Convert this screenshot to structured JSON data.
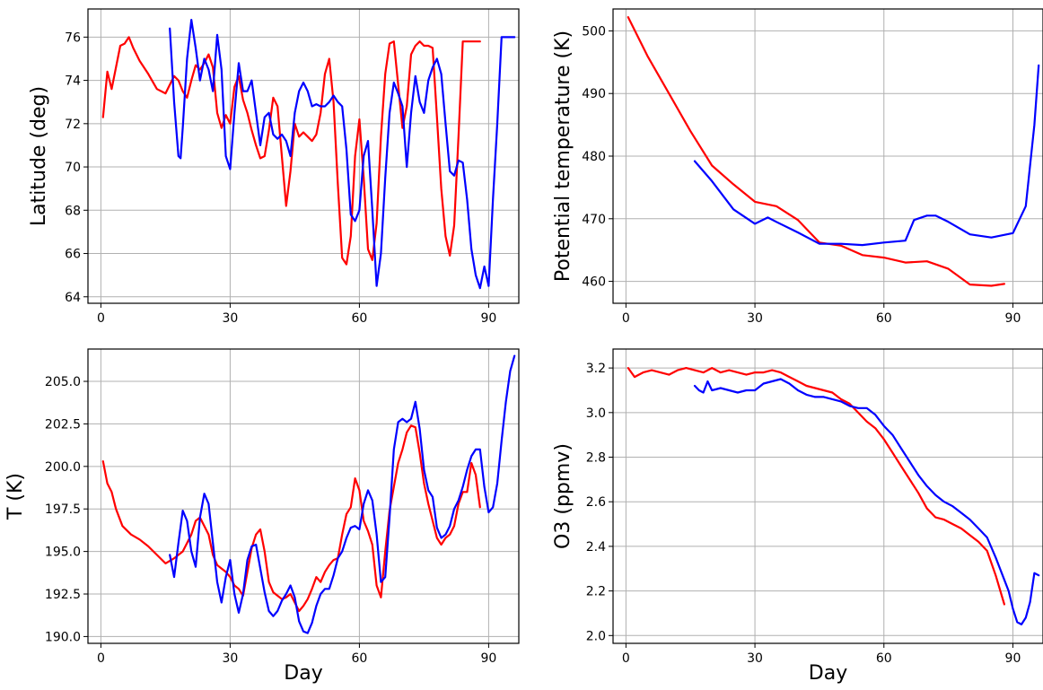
{
  "chart_data": [
    {
      "type": "line",
      "xlabel": "",
      "ylabel": "Latitude (deg)",
      "xlim": [
        -3,
        97
      ],
      "ylim": [
        63.7,
        77.3
      ],
      "xticks": [
        0,
        30,
        60,
        90
      ],
      "yticks": [
        64,
        66,
        68,
        70,
        72,
        74,
        76
      ],
      "ytick_labels": [
        "64",
        "66",
        "68",
        "70",
        "72",
        "74",
        "76"
      ],
      "grid": true,
      "series": [
        {
          "color": "#ff0000",
          "x": [
            0.5,
            1.5,
            2.5,
            3.5,
            4.5,
            5.5,
            6.5,
            7.5,
            9,
            11,
            13,
            15,
            16,
            17,
            18,
            19,
            20,
            21,
            22,
            23,
            24,
            25,
            26,
            27,
            28,
            29,
            30,
            31,
            32,
            33,
            34,
            35,
            36,
            37,
            38,
            39,
            40,
            41,
            42,
            43,
            44,
            45,
            46,
            47,
            48,
            49,
            50,
            51,
            52,
            53,
            54,
            55,
            56,
            57,
            58,
            59,
            60,
            61,
            62,
            63,
            64,
            65,
            66,
            67,
            68,
            69,
            70,
            71,
            72,
            73,
            74,
            75,
            76,
            77,
            78,
            79,
            80,
            81,
            82,
            83,
            84,
            85,
            86,
            87,
            88
          ],
          "y": [
            72.3,
            74.4,
            73.6,
            74.6,
            75.6,
            75.7,
            76.0,
            75.5,
            74.9,
            74.3,
            73.6,
            73.4,
            73.8,
            74.2,
            74.0,
            73.5,
            73.2,
            74.0,
            74.7,
            74.5,
            74.8,
            75.2,
            74.6,
            72.5,
            71.8,
            72.4,
            72.0,
            73.7,
            74.2,
            73.1,
            72.5,
            71.7,
            71.0,
            70.4,
            70.5,
            71.7,
            73.2,
            72.8,
            70.5,
            68.2,
            69.8,
            72.0,
            71.4,
            71.6,
            71.4,
            71.2,
            71.5,
            72.5,
            74.3,
            75.0,
            73.0,
            69.2,
            65.8,
            65.5,
            66.8,
            70.5,
            72.2,
            69.5,
            66.2,
            65.7,
            67.4,
            71.4,
            74.3,
            75.7,
            75.8,
            73.8,
            71.8,
            72.8,
            75.2,
            75.6,
            75.8,
            75.6,
            75.6,
            75.5,
            72.3,
            69.0,
            66.8,
            65.9,
            67.3,
            71.4,
            75.8,
            75.8,
            75.8,
            75.8,
            75.8
          ]
        },
        {
          "color": "#0000ff",
          "x": [
            16,
            17,
            18,
            18.5,
            19,
            20,
            21,
            22,
            23,
            24,
            25,
            26,
            27,
            28,
            29,
            30,
            31,
            32,
            33,
            34,
            35,
            36,
            37,
            38,
            39,
            40,
            41,
            42,
            43,
            44,
            45,
            46,
            47,
            48,
            49,
            50,
            51,
            52,
            53,
            54,
            55,
            56,
            57,
            58,
            59,
            60,
            61,
            62,
            63,
            64,
            65,
            66,
            67,
            68,
            69,
            70,
            71,
            72,
            73,
            74,
            75,
            76,
            77,
            78,
            79,
            80,
            81,
            82,
            83,
            84,
            85,
            86,
            87,
            88,
            89,
            90,
            91,
            92,
            93,
            94,
            95,
            96
          ],
          "y": [
            76.4,
            73.0,
            70.5,
            70.4,
            71.8,
            75.0,
            76.8,
            75.5,
            74.0,
            75.0,
            74.5,
            73.5,
            76.1,
            74.5,
            70.5,
            69.9,
            72.5,
            74.8,
            73.5,
            73.5,
            74.0,
            72.5,
            71.0,
            72.3,
            72.5,
            71.5,
            71.3,
            71.5,
            71.2,
            70.5,
            72.5,
            73.5,
            73.9,
            73.5,
            72.8,
            72.9,
            72.8,
            72.8,
            73.0,
            73.3,
            73.0,
            72.8,
            70.8,
            67.8,
            67.5,
            68.0,
            70.5,
            71.2,
            68.0,
            64.5,
            66.0,
            69.5,
            72.5,
            73.9,
            73.4,
            72.8,
            70.0,
            72.5,
            74.2,
            73.0,
            72.5,
            74.0,
            74.6,
            75.0,
            74.3,
            72.0,
            69.8,
            69.6,
            70.3,
            70.2,
            68.5,
            66.2,
            65.0,
            64.4,
            65.4,
            64.5,
            68.5,
            72.0,
            76.0,
            76.0,
            76.0,
            76.0
          ]
        }
      ]
    },
    {
      "type": "line",
      "xlabel": "",
      "ylabel": "Potential temperature (K)",
      "xlim": [
        -3,
        97
      ],
      "ylim": [
        456.5,
        503.5
      ],
      "xticks": [
        0,
        30,
        60,
        90
      ],
      "yticks": [
        460,
        470,
        480,
        490,
        500
      ],
      "ytick_labels": [
        "460",
        "470",
        "480",
        "490",
        "500"
      ],
      "grid": true,
      "series": [
        {
          "color": "#ff0000",
          "x": [
            0.5,
            5,
            10,
            15,
            20,
            25,
            30,
            35,
            40,
            45,
            50,
            55,
            60,
            65,
            70,
            75,
            80,
            85,
            88
          ],
          "y": [
            502.2,
            496.0,
            490.0,
            484.0,
            478.5,
            475.5,
            472.7,
            472.0,
            469.8,
            466.2,
            465.7,
            464.2,
            463.8,
            463.0,
            463.2,
            462.0,
            459.5,
            459.3,
            459.6
          ]
        },
        {
          "color": "#0000ff",
          "x": [
            16,
            20,
            25,
            30,
            33,
            35,
            40,
            45,
            50,
            55,
            60,
            65,
            67,
            70,
            72,
            75,
            80,
            85,
            90,
            93,
            95,
            96
          ],
          "y": [
            479.2,
            476.0,
            471.5,
            469.2,
            470.2,
            469.5,
            467.8,
            466.0,
            466.0,
            465.8,
            466.2,
            466.5,
            469.8,
            470.5,
            470.5,
            469.5,
            467.5,
            467.0,
            467.7,
            472.0,
            485.0,
            494.5
          ]
        }
      ]
    },
    {
      "type": "line",
      "xlabel": "Day",
      "ylabel": "T (K)",
      "xlim": [
        -3,
        97
      ],
      "ylim": [
        189.6,
        206.9
      ],
      "xticks": [
        0,
        30,
        60,
        90
      ],
      "yticks": [
        190.0,
        192.5,
        195.0,
        197.5,
        200.0,
        202.5,
        205.0
      ],
      "ytick_labels": [
        "190.0",
        "192.5",
        "195.0",
        "197.5",
        "200.0",
        "202.5",
        "205.0"
      ],
      "grid": true,
      "series": [
        {
          "color": "#ff0000",
          "x": [
            0.5,
            1.5,
            2.5,
            3.5,
            5,
            7,
            9,
            11,
            13,
            15,
            17,
            19,
            21,
            22,
            23,
            24,
            25,
            26,
            27,
            28,
            29,
            30,
            31,
            32,
            33,
            34,
            35,
            36,
            37,
            38,
            39,
            40,
            41,
            42,
            43,
            44,
            45,
            46,
            47,
            48,
            49,
            50,
            51,
            52,
            53,
            54,
            55,
            56,
            57,
            58,
            59,
            60,
            61,
            62,
            63,
            64,
            65,
            66,
            67,
            68,
            69,
            70,
            71,
            72,
            73,
            74,
            75,
            76,
            77,
            78,
            79,
            80,
            81,
            82,
            83,
            84,
            85,
            86,
            87,
            88
          ],
          "y": [
            200.3,
            199.0,
            198.5,
            197.5,
            196.5,
            196.0,
            195.7,
            195.3,
            194.8,
            194.3,
            194.6,
            195.0,
            196.0,
            196.8,
            197.0,
            196.5,
            196.0,
            194.8,
            194.2,
            194.0,
            193.8,
            193.5,
            193.0,
            192.8,
            192.4,
            193.8,
            195.2,
            196.0,
            196.3,
            195.0,
            193.2,
            192.6,
            192.4,
            192.2,
            192.3,
            192.5,
            192.0,
            191.5,
            191.8,
            192.2,
            192.8,
            193.5,
            193.2,
            193.8,
            194.2,
            194.5,
            194.6,
            196.0,
            197.2,
            197.6,
            199.3,
            198.6,
            196.8,
            196.2,
            195.4,
            193.0,
            192.3,
            195.0,
            197.4,
            198.8,
            200.2,
            201.0,
            202.0,
            202.4,
            202.3,
            200.8,
            199.0,
            197.8,
            196.8,
            195.8,
            195.4,
            195.8,
            196.0,
            196.5,
            197.8,
            198.5,
            198.5,
            200.2,
            199.5,
            197.6
          ]
        },
        {
          "color": "#0000ff",
          "x": [
            16,
            17,
            18,
            19,
            20,
            21,
            22,
            23,
            24,
            25,
            26,
            27,
            28,
            29,
            30,
            31,
            32,
            33,
            34,
            35,
            36,
            37,
            38,
            39,
            40,
            41,
            42,
            43,
            44,
            45,
            46,
            47,
            48,
            49,
            50,
            51,
            52,
            53,
            54,
            55,
            56,
            57,
            58,
            59,
            60,
            61,
            62,
            63,
            64,
            65,
            66,
            67,
            68,
            69,
            70,
            71,
            72,
            73,
            74,
            75,
            76,
            77,
            78,
            79,
            80,
            81,
            82,
            83,
            84,
            85,
            86,
            87,
            88,
            89,
            90,
            91,
            92,
            93,
            94,
            95,
            96
          ],
          "y": [
            194.8,
            193.5,
            195.5,
            197.4,
            196.8,
            195.0,
            194.1,
            197.0,
            198.4,
            197.8,
            195.5,
            193.2,
            192.0,
            193.5,
            194.5,
            192.5,
            191.4,
            192.5,
            194.5,
            195.3,
            195.4,
            194.0,
            192.6,
            191.5,
            191.2,
            191.5,
            192.1,
            192.5,
            193.0,
            192.3,
            190.9,
            190.3,
            190.2,
            190.8,
            191.8,
            192.5,
            192.8,
            192.8,
            193.6,
            194.6,
            195.0,
            195.8,
            196.4,
            196.5,
            196.3,
            197.8,
            198.6,
            198.0,
            196.0,
            193.2,
            193.5,
            197.0,
            201.0,
            202.6,
            202.8,
            202.6,
            202.8,
            203.8,
            202.2,
            199.8,
            198.6,
            198.2,
            196.4,
            195.8,
            196.0,
            196.5,
            197.5,
            198.0,
            198.8,
            199.8,
            200.6,
            201.0,
            201.0,
            198.8,
            197.3,
            197.6,
            199.0,
            201.5,
            203.8,
            205.6,
            206.5
          ]
        }
      ]
    },
    {
      "type": "line",
      "xlabel": "Day",
      "ylabel": "O3 (ppmv)",
      "xlim": [
        -3,
        97
      ],
      "ylim": [
        1.965,
        3.285
      ],
      "xticks": [
        0,
        30,
        60,
        90
      ],
      "yticks": [
        2.0,
        2.2,
        2.4,
        2.6,
        2.8,
        3.0,
        3.2
      ],
      "ytick_labels": [
        "2.0",
        "2.2",
        "2.4",
        "2.6",
        "2.8",
        "3.0",
        "3.2"
      ],
      "grid": true,
      "series": [
        {
          "color": "#ff0000",
          "x": [
            0.5,
            2,
            4,
            6,
            8,
            10,
            12,
            14,
            16,
            18,
            20,
            22,
            24,
            26,
            28,
            30,
            32,
            34,
            36,
            38,
            40,
            42,
            44,
            46,
            48,
            50,
            52,
            54,
            56,
            58,
            60,
            62,
            64,
            66,
            68,
            70,
            72,
            74,
            76,
            78,
            80,
            82,
            84,
            86,
            88
          ],
          "y": [
            3.2,
            3.16,
            3.18,
            3.19,
            3.18,
            3.17,
            3.19,
            3.2,
            3.19,
            3.18,
            3.2,
            3.18,
            3.19,
            3.18,
            3.17,
            3.18,
            3.18,
            3.19,
            3.18,
            3.16,
            3.14,
            3.12,
            3.11,
            3.1,
            3.09,
            3.06,
            3.04,
            3.0,
            2.96,
            2.93,
            2.88,
            2.82,
            2.76,
            2.7,
            2.64,
            2.57,
            2.53,
            2.52,
            2.5,
            2.48,
            2.45,
            2.42,
            2.38,
            2.27,
            2.14
          ]
        },
        {
          "color": "#0000ff",
          "x": [
            16,
            17,
            18,
            19,
            20,
            22,
            24,
            26,
            28,
            30,
            32,
            34,
            36,
            38,
            40,
            42,
            44,
            46,
            48,
            50,
            52,
            54,
            56,
            58,
            60,
            62,
            64,
            66,
            68,
            70,
            72,
            74,
            76,
            78,
            80,
            82,
            84,
            86,
            88,
            89,
            90,
            91,
            92,
            93,
            94,
            95,
            96
          ],
          "y": [
            3.12,
            3.1,
            3.09,
            3.14,
            3.1,
            3.11,
            3.1,
            3.09,
            3.1,
            3.1,
            3.13,
            3.14,
            3.15,
            3.13,
            3.1,
            3.08,
            3.07,
            3.07,
            3.06,
            3.05,
            3.03,
            3.02,
            3.02,
            2.99,
            2.94,
            2.9,
            2.84,
            2.78,
            2.72,
            2.67,
            2.63,
            2.6,
            2.58,
            2.55,
            2.52,
            2.48,
            2.44,
            2.35,
            2.25,
            2.2,
            2.12,
            2.06,
            2.05,
            2.08,
            2.15,
            2.28,
            2.27
          ]
        }
      ]
    }
  ]
}
